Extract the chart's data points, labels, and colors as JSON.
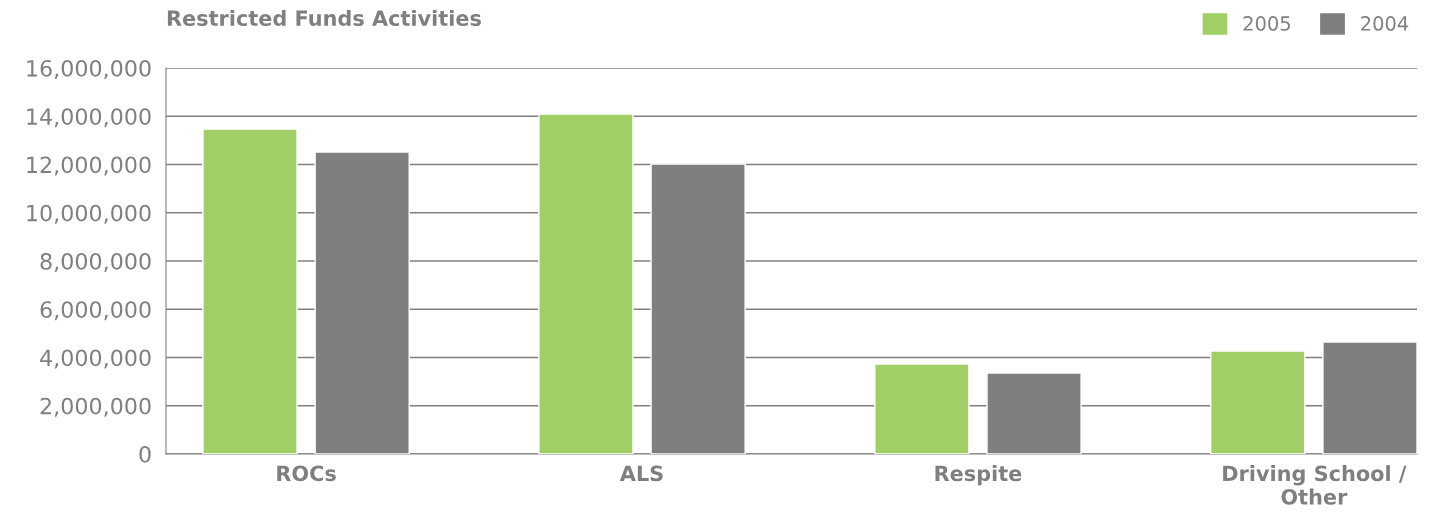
{
  "chart_data": {
    "type": "bar",
    "title": "Restricted Funds Activities",
    "categories": [
      "ROCs",
      "ALS",
      "Respite",
      "Driving School / Other"
    ],
    "series": [
      {
        "name": "2005",
        "color": "#a2ce67",
        "values": [
          13470000,
          14090000,
          3730000,
          4270000
        ]
      },
      {
        "name": "2004",
        "color": "#7f7f80",
        "values": [
          12520000,
          12020000,
          3360000,
          4640000
        ]
      }
    ],
    "ylim": [
      0,
      16000000
    ],
    "yticks": [
      {
        "value": 0,
        "label": "0"
      },
      {
        "value": 2000000,
        "label": "2,000,000"
      },
      {
        "value": 4000000,
        "label": "4,000,000"
      },
      {
        "value": 6000000,
        "label": "6,000,000"
      },
      {
        "value": 8000000,
        "label": "8,000,000"
      },
      {
        "value": 10000000,
        "label": "10,000,000"
      },
      {
        "value": 12000000,
        "label": "12,000,000"
      },
      {
        "value": 14000000,
        "label": "14,000,000"
      },
      {
        "value": 16000000,
        "label": "16,000,000"
      }
    ],
    "grid": "y",
    "legend": "top right"
  }
}
